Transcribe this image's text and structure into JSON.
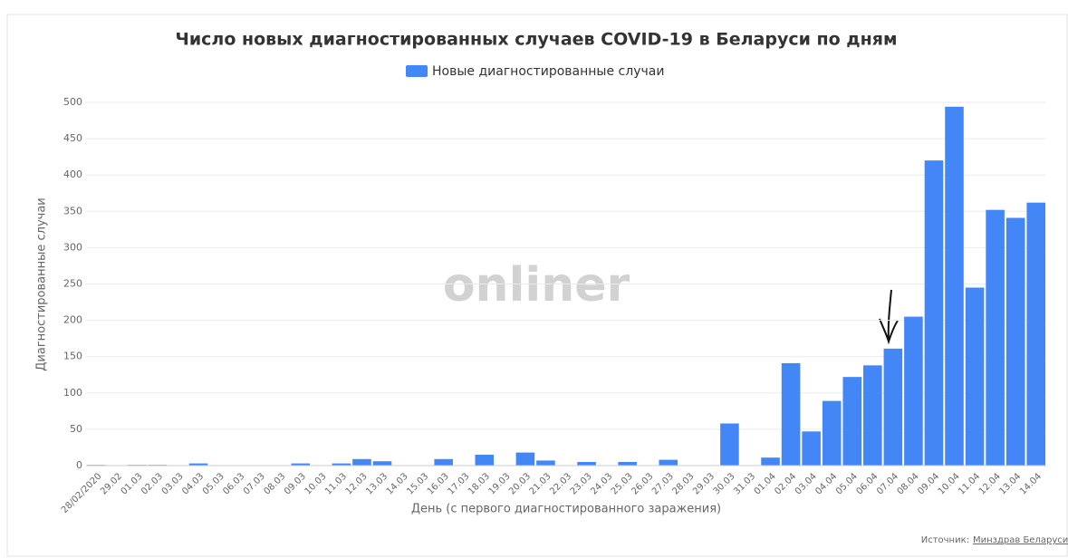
{
  "chart_data": {
    "type": "bar",
    "title": "Число новых диагностированных случаев COVID-19 в Беларуси по дням",
    "x_label": "День (с первого диагностированного заражения)",
    "y_label": "Диагностированные случаи",
    "watermark": "onliner",
    "source_label": "Источник:",
    "source_link": "Минздрав Беларуси",
    "categories": [
      "28/02/2020",
      "29.02",
      "01.03",
      "02.03",
      "03.03",
      "04.03",
      "05.03",
      "06.03",
      "07.03",
      "08.03",
      "09.03",
      "10.03",
      "11.03",
      "12.03",
      "13.03",
      "14.03",
      "15.03",
      "16.03",
      "17.03",
      "18.03",
      "19.03",
      "20.03",
      "21.03",
      "22.03",
      "23.03",
      "24.03",
      "25.03",
      "26.03",
      "27.03",
      "28.03",
      "29.03",
      "30.03",
      "31.03",
      "01.04",
      "02.04",
      "03.04",
      "04.04",
      "05.04",
      "06.04",
      "07.04",
      "08.04",
      "09.04",
      "10.04",
      "11.04",
      "12.04",
      "13.04",
      "14.04"
    ],
    "series": [
      {
        "name": "Новые диагностированные случаи",
        "color": "#4287f5",
        "values": [
          1,
          0,
          1,
          1,
          0,
          3,
          0,
          0,
          0,
          0,
          3,
          0,
          3,
          9,
          6,
          0,
          0,
          9,
          0,
          15,
          0,
          18,
          7,
          0,
          5,
          0,
          5,
          0,
          8,
          0,
          0,
          58,
          0,
          11,
          141,
          47,
          89,
          122,
          138,
          161,
          205,
          420,
          494,
          245,
          352,
          341,
          362
        ]
      }
    ],
    "ylim": [
      0,
      500
    ],
    "yticks": [
      0,
      50,
      100,
      150,
      200,
      250,
      300,
      350,
      400,
      450,
      500
    ],
    "grid": true
  }
}
